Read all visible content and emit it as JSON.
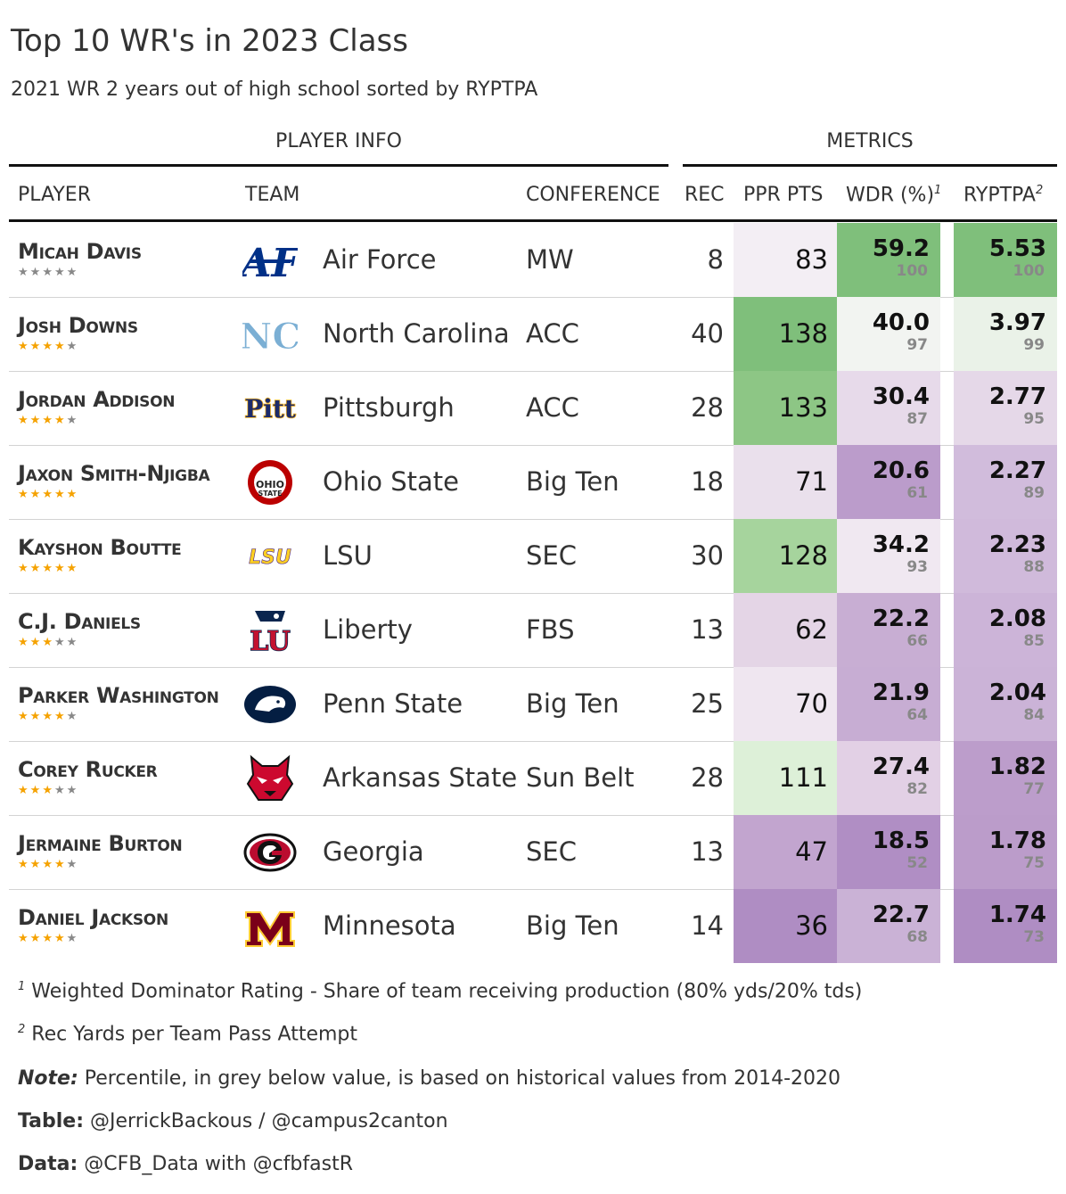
{
  "title": "Top 10 WR's in 2023 Class",
  "subtitle": "2021 WR 2 years out of high school sorted by RYPTPA",
  "spanners": {
    "player_info": "PLAYER INFO",
    "metrics": "METRICS"
  },
  "columns": {
    "player": "PLAYER",
    "team": "TEAM",
    "conference": "CONFERENCE",
    "rec": "REC",
    "ppr": "PPR PTS",
    "wdr": "WDR (%)",
    "wdr_sup": "1",
    "ryptpa": "RYPTPA",
    "ryptpa_sup": "2"
  },
  "colors": {
    "star_gold": "#F5A200",
    "star_grey": "#888888",
    "scale": {
      "green_high": "#7FBF7B",
      "green_mid": "#A6D49D",
      "green_light": "#DDF0D8",
      "neutral": "#F1EEF3",
      "purple_light": "#E7D4E8",
      "purple_mid": "#C2A5CF",
      "purple_high": "#AF8DC3"
    }
  },
  "chart_data": {
    "type": "table",
    "rows": [
      {
        "player": "Micah Davis",
        "stars": 0,
        "team": "Air Force",
        "conference": "MW",
        "rec": "8",
        "ppr": "83",
        "wdr": "59.2",
        "wdr_pct": "100",
        "ryptpa": "5.53",
        "ryptpa_pct": "100",
        "logo": "air-force-logo"
      },
      {
        "player": "Josh Downs",
        "stars": 4,
        "team": "North Carolina",
        "conference": "ACC",
        "rec": "40",
        "ppr": "138",
        "wdr": "40.0",
        "wdr_pct": "97",
        "ryptpa": "3.97",
        "ryptpa_pct": "99",
        "logo": "north-carolina-logo"
      },
      {
        "player": "Jordan Addison",
        "stars": 4,
        "team": "Pittsburgh",
        "conference": "ACC",
        "rec": "28",
        "ppr": "133",
        "wdr": "30.4",
        "wdr_pct": "87",
        "ryptpa": "2.77",
        "ryptpa_pct": "95",
        "logo": "pitt-logo"
      },
      {
        "player": "Jaxon Smith-Njigba",
        "stars": 5,
        "team": "Ohio State",
        "conference": "Big Ten",
        "rec": "18",
        "ppr": "71",
        "wdr": "20.6",
        "wdr_pct": "61",
        "ryptpa": "2.27",
        "ryptpa_pct": "89",
        "logo": "ohio-state-logo"
      },
      {
        "player": "Kayshon Boutte",
        "stars": 5,
        "team": "LSU",
        "conference": "SEC",
        "rec": "30",
        "ppr": "128",
        "wdr": "34.2",
        "wdr_pct": "93",
        "ryptpa": "2.23",
        "ryptpa_pct": "88",
        "logo": "lsu-logo"
      },
      {
        "player": "C.J. Daniels",
        "stars": 3,
        "team": "Liberty",
        "conference": "FBS",
        "rec": "13",
        "ppr": "62",
        "wdr": "22.2",
        "wdr_pct": "66",
        "ryptpa": "2.08",
        "ryptpa_pct": "85",
        "logo": "liberty-logo"
      },
      {
        "player": "Parker Washington",
        "stars": 4,
        "team": "Penn State",
        "conference": "Big Ten",
        "rec": "25",
        "ppr": "70",
        "wdr": "21.9",
        "wdr_pct": "64",
        "ryptpa": "2.04",
        "ryptpa_pct": "84",
        "logo": "penn-state-logo"
      },
      {
        "player": "Corey Rucker",
        "stars": 3,
        "team": "Arkansas State",
        "conference": "Sun Belt",
        "rec": "28",
        "ppr": "111",
        "wdr": "27.4",
        "wdr_pct": "82",
        "ryptpa": "1.82",
        "ryptpa_pct": "77",
        "logo": "arkansas-state-logo"
      },
      {
        "player": "Jermaine Burton",
        "stars": 4,
        "team": "Georgia",
        "conference": "SEC",
        "rec": "13",
        "ppr": "47",
        "wdr": "18.5",
        "wdr_pct": "52",
        "ryptpa": "1.78",
        "ryptpa_pct": "75",
        "logo": "georgia-logo"
      },
      {
        "player": "Daniel Jackson",
        "stars": 4,
        "team": "Minnesota",
        "conference": "Big Ten",
        "rec": "14",
        "ppr": "36",
        "wdr": "22.7",
        "wdr_pct": "68",
        "ryptpa": "1.74",
        "ryptpa_pct": "73",
        "logo": "minnesota-logo"
      }
    ],
    "cell_colors": {
      "ppr": [
        "#F3EEF4",
        "#7FBF7B",
        "#8DC685",
        "#EAE0EC",
        "#A6D49D",
        "#E4D5E6",
        "#EFE6F0",
        "#DDF0D8",
        "#C2A5CF",
        "#AF8DC3"
      ],
      "wdr": [
        "#7FBF7B",
        "#F2F4F1",
        "#E7DAEA",
        "#BB9CCB",
        "#F0E8F1",
        "#C8AED3",
        "#C7ADD3",
        "#E2D0E5",
        "#B08EC4",
        "#CAB2D6"
      ],
      "ryptpa": [
        "#7FBF7B",
        "#EAF2E8",
        "#E5D8E8",
        "#D1BCDC",
        "#D0BADB",
        "#CCB4D8",
        "#CBB3D7",
        "#BC9DCB",
        "#BB9CCA",
        "#AF8DC3"
      ]
    }
  },
  "footnotes": {
    "fn1_sup": "1",
    "fn1": "Weighted Dominator Rating - Share of team receiving production (80% yds/20% tds)",
    "fn2_sup": "2",
    "fn2": "Rec Yards per Team Pass Attempt",
    "note_label": "Note:",
    "note": " Percentile, in grey below value, is based on historical values from 2014-2020",
    "table_label": "Table:",
    "table": " @JerrickBackous / @campus2canton",
    "data_label": "Data:",
    "data": " @CFB_Data with @cfbfastR"
  }
}
